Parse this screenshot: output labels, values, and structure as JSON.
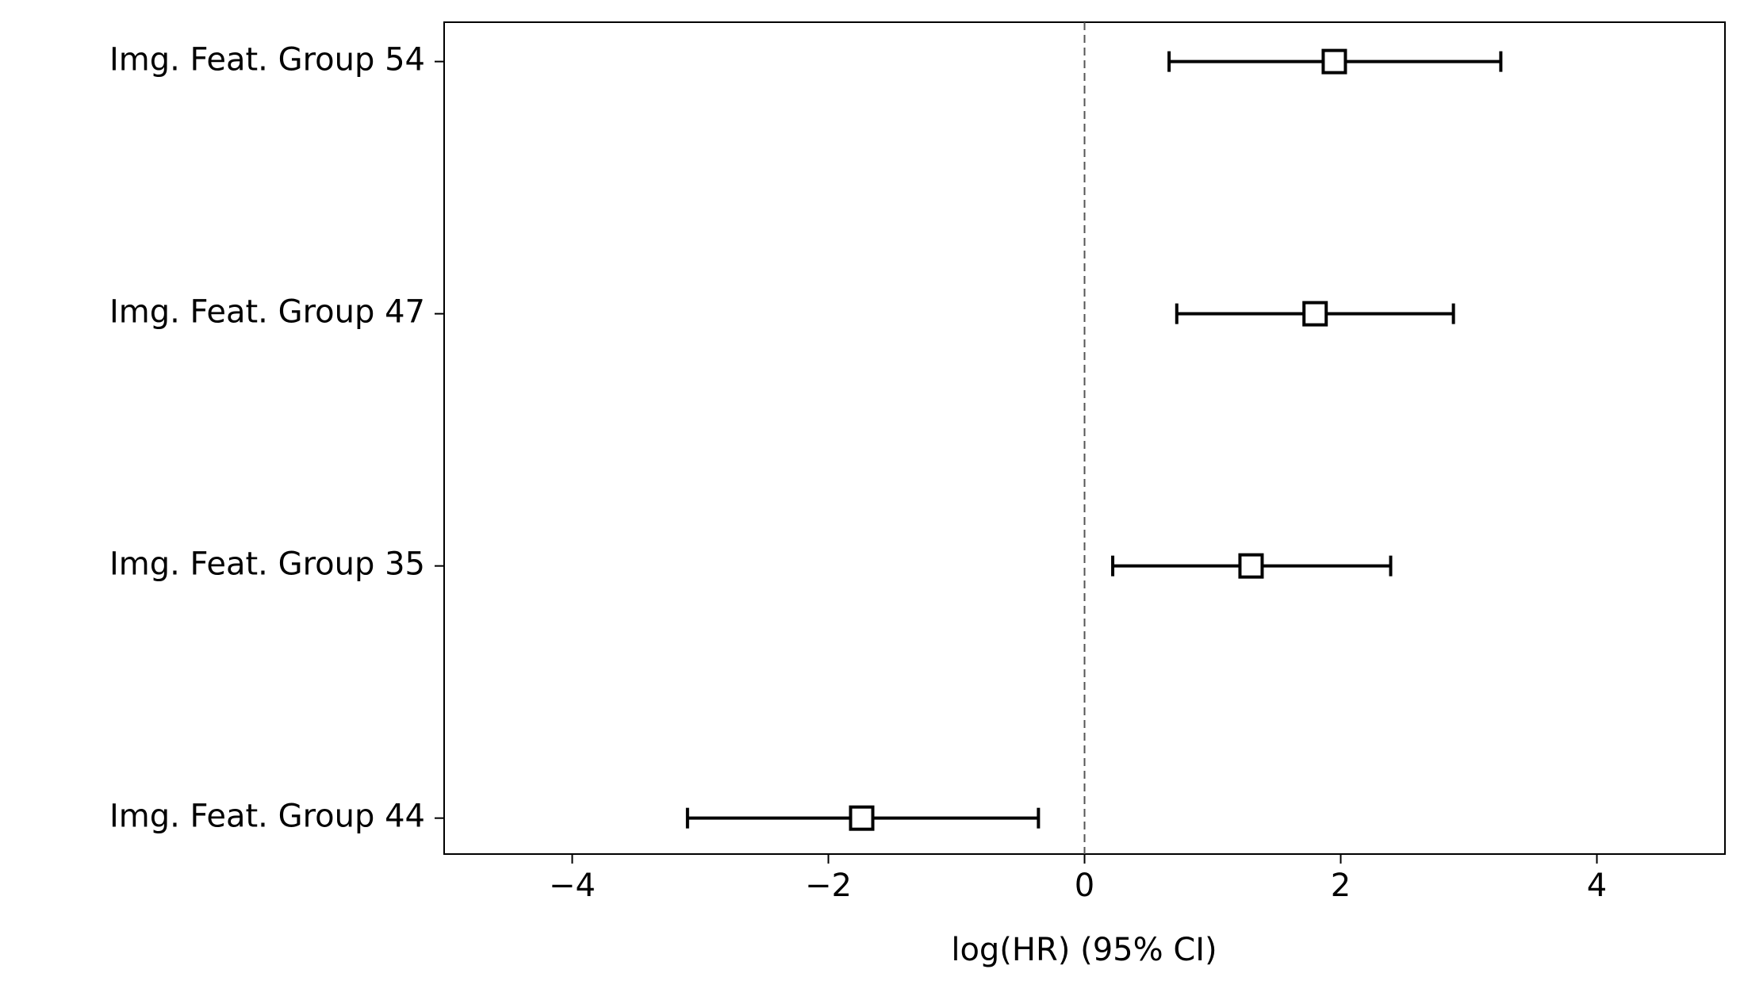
{
  "chart_data": {
    "type": "forest",
    "x_label": "log(HR) (95% CI)",
    "categories": [
      "Img. Feat. Group 54",
      "Img. Feat. Group 47",
      "Img. Feat. Group 35",
      "Img. Feat. Group 44"
    ],
    "values": [
      1.95,
      1.8,
      1.3,
      -1.74
    ],
    "lower": [
      0.66,
      0.72,
      0.22,
      -3.1
    ],
    "upper": [
      3.25,
      2.88,
      2.39,
      -0.36
    ],
    "color": "#000000",
    "reference_line": 0,
    "xlim": [
      -5,
      5
    ],
    "xticks": [
      {
        "value": -4,
        "label": "−4"
      },
      {
        "value": -2,
        "label": "−2"
      },
      0,
      2,
      4
    ]
  }
}
